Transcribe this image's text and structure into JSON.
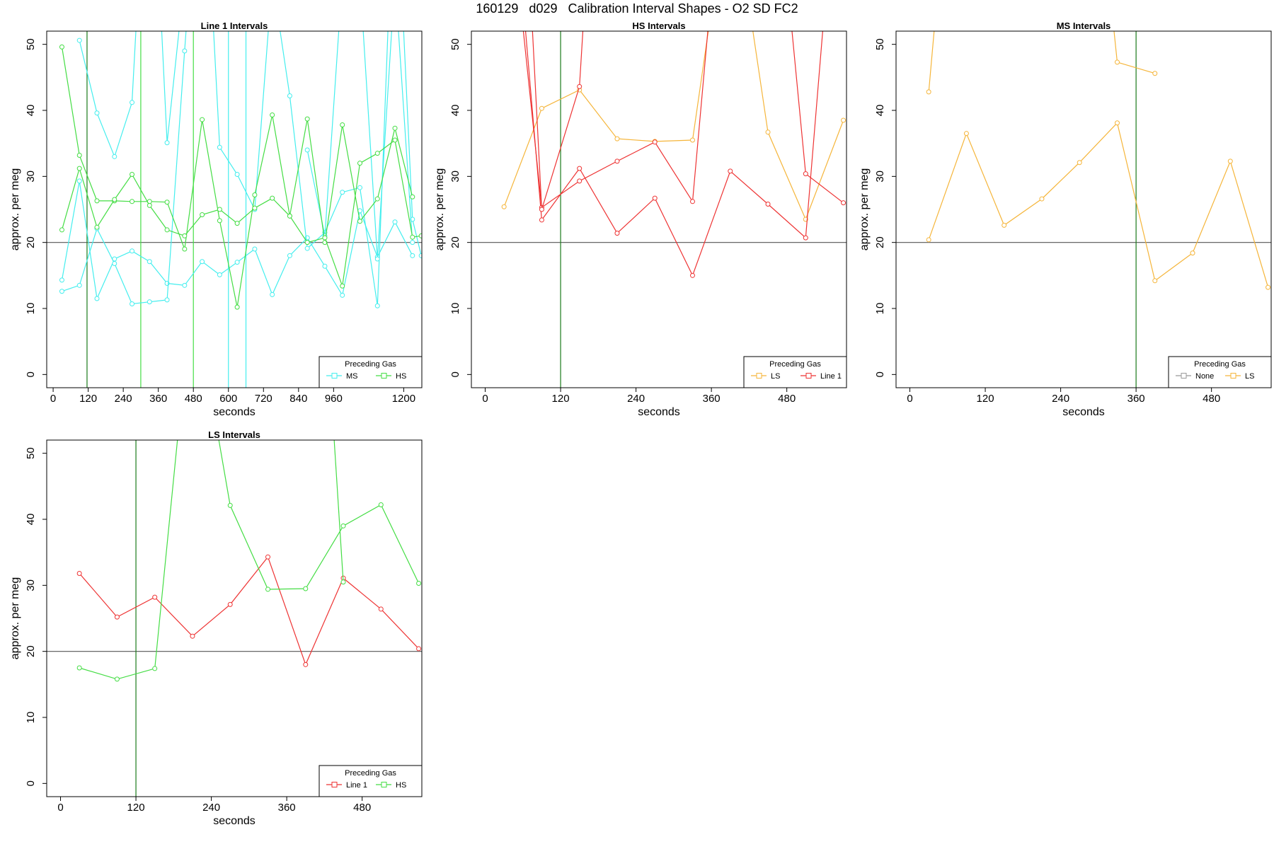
{
  "main_title": "160129   d029   Calibration Interval Shapes - O2 SD FC2",
  "colors": {
    "cyan": "#44eeee",
    "green": "#44dd44",
    "red": "#ee3333",
    "orange": "#f5b53a",
    "gray": "#999999",
    "darkgreen": "#1a7a1a",
    "refline": "#555555"
  },
  "chart_data": [
    {
      "type": "line",
      "title": "Line 1 Intervals",
      "xlabel": "seconds",
      "ylabel": "approx. per meg",
      "xlim": [
        -22,
        1262
      ],
      "ylim": [
        -2,
        52
      ],
      "xticks": [
        0,
        120,
        240,
        360,
        480,
        600,
        720,
        840,
        960,
        1200
      ],
      "yticks": [
        0,
        10,
        20,
        30,
        40,
        50
      ],
      "hline": 20,
      "vlines": [
        {
          "x": 116,
          "color": "darkgreen"
        },
        {
          "x": 300,
          "color": "green"
        },
        {
          "x": 480,
          "color": "green"
        },
        {
          "x": 600,
          "color": "cyan"
        },
        {
          "x": 660,
          "color": "cyan"
        }
      ],
      "legend": {
        "title": "Preceding Gas",
        "position": "bottom-right",
        "entries": [
          {
            "label": "MS",
            "color": "cyan"
          },
          {
            "label": "HS",
            "color": "green"
          }
        ]
      },
      "series": [
        {
          "name": "MS",
          "color": "cyan",
          "x": [
            30,
            90,
            150,
            210,
            270,
            330,
            390,
            450,
            510,
            570,
            630,
            690,
            750,
            810,
            870,
            930,
            990,
            1050,
            1110,
            1170,
            1230
          ],
          "y": [
            14.3,
            29.3,
            11.5,
            17.5,
            18.7,
            17.1,
            13.8,
            13.5,
            17.1,
            15.1,
            17.0,
            19.0,
            12.1,
            18.0,
            20.7,
            16.4,
            12.0,
            24.8,
            17.8,
            23.1,
            18.0
          ]
        },
        {
          "name": "MS",
          "color": "cyan",
          "x": [
            30,
            90,
            150,
            210,
            270,
            330,
            390,
            450,
            510,
            570,
            630,
            690,
            750,
            810,
            870,
            930,
            990,
            1050,
            1110,
            1170,
            1230,
            1260
          ],
          "y": [
            12.6,
            13.5,
            22.1,
            16.8,
            10.7,
            11.0,
            11.3,
            49.0,
            85,
            34.4,
            30.3,
            25.0,
            60,
            42.2,
            19.1,
            21.5,
            27.6,
            28.3,
            10.4,
            80,
            23.5,
            18.0
          ]
        },
        {
          "name": "MS",
          "color": "cyan",
          "x": [
            90,
            150,
            210,
            270,
            330,
            390,
            450
          ],
          "y": [
            50.6,
            39.6,
            33.0,
            41.2,
            90,
            35.1,
            60
          ]
        },
        {
          "name": "MS",
          "color": "cyan",
          "x": [
            870,
            930,
            990,
            1050,
            1110,
            1170,
            1230
          ],
          "y": [
            34.0,
            21.0,
            60,
            60,
            17.5,
            60,
            20.0
          ]
        },
        {
          "name": "HS",
          "color": "green",
          "x": [
            30,
            90,
            150,
            210,
            270,
            330,
            390,
            450,
            510,
            570,
            630,
            690,
            750,
            810,
            870,
            930,
            990,
            1050,
            1110,
            1170,
            1230
          ],
          "y": [
            49.6,
            33.2,
            26.3,
            26.3,
            26.2,
            26.2,
            26.1,
            19.0,
            38.6,
            23.3,
            10.2,
            27.2,
            39.3,
            24.0,
            38.7,
            20.0,
            37.8,
            23.2,
            26.6,
            37.3,
            26.9
          ]
        },
        {
          "name": "HS",
          "color": "green",
          "x": [
            30,
            90,
            150,
            210,
            270,
            330,
            390,
            450,
            510,
            570,
            630,
            690,
            750,
            810,
            870,
            930,
            990,
            1050,
            1110,
            1170,
            1230,
            1260
          ],
          "y": [
            21.9,
            31.2,
            22.3,
            26.5,
            30.3,
            25.6,
            21.9,
            21.0,
            24.2,
            25.0,
            22.9,
            25.2,
            26.7,
            24.0,
            20.0,
            20.7,
            13.4,
            32.0,
            33.5,
            35.5,
            20.8,
            21.0
          ]
        }
      ]
    },
    {
      "type": "line",
      "title": "HS Intervals",
      "xlabel": "seconds",
      "ylabel": "approx. per meg",
      "xlim": [
        -22,
        575
      ],
      "ylim": [
        -2,
        52
      ],
      "xticks": [
        0,
        120,
        240,
        360,
        480
      ],
      "yticks": [
        0,
        10,
        20,
        30,
        40,
        50
      ],
      "hline": 20,
      "vlines": [
        {
          "x": 120,
          "color": "darkgreen"
        }
      ],
      "legend": {
        "title": "Preceding Gas",
        "position": "bottom-right",
        "entries": [
          {
            "label": "LS",
            "color": "orange"
          },
          {
            "label": "Line 1",
            "color": "red"
          }
        ]
      },
      "series": [
        {
          "name": "LS",
          "color": "orange",
          "x": [
            30,
            90,
            150,
            210,
            270,
            330,
            390,
            450,
            510,
            570
          ],
          "y": [
            25.4,
            40.3,
            43.1,
            35.7,
            35.3,
            35.5,
            75,
            36.7,
            23.5,
            38.5
          ]
        },
        {
          "name": "Line 1",
          "color": "red",
          "x": [
            30,
            90,
            150,
            210,
            270,
            330,
            390,
            450,
            510,
            570
          ],
          "y": [
            90,
            23.4,
            31.2,
            21.4,
            26.7,
            15.0,
            30.8,
            25.8,
            20.7,
            90
          ]
        },
        {
          "name": "Line 1",
          "color": "red",
          "x": [
            30,
            90,
            150,
            210,
            270,
            330,
            390,
            450,
            510,
            570
          ],
          "y": [
            80,
            25.3,
            29.3,
            32.3,
            35.2,
            26.2,
            90,
            90,
            30.4,
            26.0
          ]
        },
        {
          "name": "Line 1",
          "color": "red",
          "x": [
            60,
            90,
            150,
            180
          ],
          "y": [
            80,
            25.0,
            43.6,
            90
          ]
        }
      ]
    },
    {
      "type": "line",
      "title": "MS Intervals",
      "xlabel": "seconds",
      "ylabel": "approx. per meg",
      "xlim": [
        -22,
        575
      ],
      "ylim": [
        -2,
        52
      ],
      "xticks": [
        0,
        120,
        240,
        360,
        480
      ],
      "yticks": [
        0,
        10,
        20,
        30,
        40,
        50
      ],
      "hline": 20,
      "vlines": [
        {
          "x": 360,
          "color": "darkgreen"
        }
      ],
      "legend": {
        "title": "Preceding Gas",
        "position": "bottom-right",
        "entries": [
          {
            "label": "None",
            "color": "gray"
          },
          {
            "label": "LS",
            "color": "orange"
          }
        ]
      },
      "series": [
        {
          "name": "LS",
          "color": "orange",
          "x": [
            30,
            90,
            150,
            210,
            270,
            330,
            390,
            450,
            510,
            570
          ],
          "y": [
            20.4,
            36.5,
            22.6,
            26.6,
            32.1,
            38.1,
            14.2,
            18.4,
            32.3,
            13.2
          ]
        },
        {
          "name": "LS",
          "color": "orange",
          "x": [
            30,
            60
          ],
          "y": [
            42.8,
            75
          ]
        },
        {
          "name": "LS",
          "color": "orange",
          "x": [
            300,
            330,
            390
          ],
          "y": [
            75,
            47.3,
            45.6
          ]
        }
      ]
    },
    {
      "type": "line",
      "title": "LS Intervals",
      "xlabel": "seconds",
      "ylabel": "approx. per meg",
      "xlim": [
        -22,
        575
      ],
      "ylim": [
        -2,
        52
      ],
      "xticks": [
        0,
        120,
        240,
        360,
        480
      ],
      "yticks": [
        0,
        10,
        20,
        30,
        40,
        50
      ],
      "hline": 20,
      "vlines": [
        {
          "x": 120,
          "color": "darkgreen"
        }
      ],
      "legend": {
        "title": "Preceding Gas",
        "position": "bottom-right",
        "entries": [
          {
            "label": "Line 1",
            "color": "red"
          },
          {
            "label": "HS",
            "color": "green"
          }
        ]
      },
      "series": [
        {
          "name": "Line 1",
          "color": "red",
          "x": [
            30,
            90,
            150,
            210,
            270,
            330,
            390,
            450,
            510,
            570
          ],
          "y": [
            31.8,
            25.2,
            28.2,
            22.3,
            27.1,
            34.3,
            18.0,
            31.1,
            26.4,
            20.4
          ]
        },
        {
          "name": "HS",
          "color": "green",
          "x": [
            30,
            90,
            150,
            210,
            270,
            330,
            390,
            450,
            510,
            570
          ],
          "y": [
            17.5,
            15.8,
            17.4,
            75,
            42.1,
            29.4,
            29.5,
            39.0,
            42.2,
            30.3
          ]
        },
        {
          "name": "HS",
          "color": "green",
          "x": [
            420,
            450
          ],
          "y": [
            75,
            30.5
          ]
        }
      ]
    }
  ]
}
